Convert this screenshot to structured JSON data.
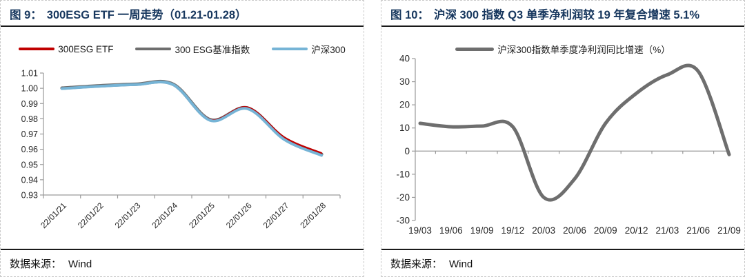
{
  "accent_colors": {
    "title_navy": "#17375E",
    "etf_red": "#C00000",
    "benchmark_gray": "#6E6E6E",
    "hs300_blue": "#76B4D6",
    "axis_gray": "#9A9A9A"
  },
  "panels": [
    {
      "title_prefix": "图 9：",
      "title_text": "300ESG ETF 一周走势（01.21-01.28）",
      "source_label": "数据来源：",
      "source_value": "Wind"
    },
    {
      "title_prefix": "图 10：",
      "title_text": "沪深 300 指数 Q3 单季净利润较 19 年复合增速 5.1%",
      "source_label": "数据来源：",
      "source_value": "Wind"
    }
  ],
  "chart_data": [
    {
      "type": "line",
      "title": "300ESG ETF 一周走势（01.21-01.28）",
      "xlabel": "",
      "ylabel": "",
      "grid": false,
      "legend_position": "top",
      "categories": [
        "22/01/21",
        "22/01/22",
        "22/01/23",
        "22/01/24",
        "22/01/25",
        "22/01/26",
        "22/01/27",
        "22/01/28"
      ],
      "y_ticks": [
        "1.01",
        "1.00",
        "0.99",
        "0.98",
        "0.97",
        "0.96",
        "0.95",
        "0.94",
        "0.93"
      ],
      "ylim": [
        0.93,
        1.01
      ],
      "series": [
        {
          "name": "300ESG ETF",
          "color": "#C00000",
          "width": 2.4,
          "values": [
            1.0,
            1.0015,
            1.0026,
            1.0025,
            0.9795,
            0.9876,
            0.9678,
            0.9575
          ]
        },
        {
          "name": "300 ESG基准指数",
          "color": "#6E6E6E",
          "width": 5,
          "values": [
            1.0001,
            1.0016,
            1.0027,
            1.0026,
            0.9793,
            0.9871,
            0.967,
            0.9567
          ]
        },
        {
          "name": "沪深300",
          "color": "#76B4D6",
          "width": 4,
          "values": [
            0.9998,
            1.0013,
            1.0024,
            1.0023,
            0.9789,
            0.9866,
            0.9663,
            0.956
          ]
        }
      ]
    },
    {
      "type": "line",
      "title": "沪深 300 指数 Q3 单季净利润较 19 年复合增速 5.1%",
      "xlabel": "",
      "ylabel": "",
      "grid": false,
      "legend_position": "top",
      "categories": [
        "19/03",
        "19/06",
        "19/09",
        "19/12",
        "20/03",
        "20/06",
        "20/09",
        "20/12",
        "21/03",
        "21/06",
        "21/09"
      ],
      "y_ticks": [
        "40",
        "30",
        "20",
        "10",
        "0",
        "-10",
        "-20",
        "-30"
      ],
      "ylim": [
        -30,
        40
      ],
      "series": [
        {
          "name": "沪深300指数单季度净利润同比增速（%）",
          "color": "#6E6E6E",
          "width": 5,
          "values": [
            12,
            10.5,
            10.8,
            10.5,
            -20,
            -12,
            12,
            25,
            33,
            34.5,
            -1.5
          ]
        }
      ]
    }
  ]
}
